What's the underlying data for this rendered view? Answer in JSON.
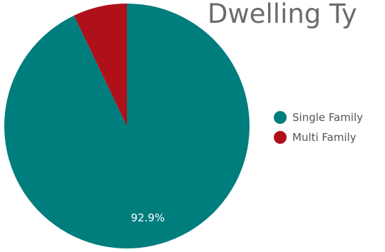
{
  "chart_data": {
    "type": "pie",
    "title": "Dwelling Ty",
    "categories": [
      "Single Family",
      "Multi Family"
    ],
    "values": [
      92.9,
      7.1
    ],
    "colors": [
      "#007d7d",
      "#b0101a"
    ],
    "data_labels": [
      "92.9%",
      ""
    ],
    "legend_position": "right"
  }
}
